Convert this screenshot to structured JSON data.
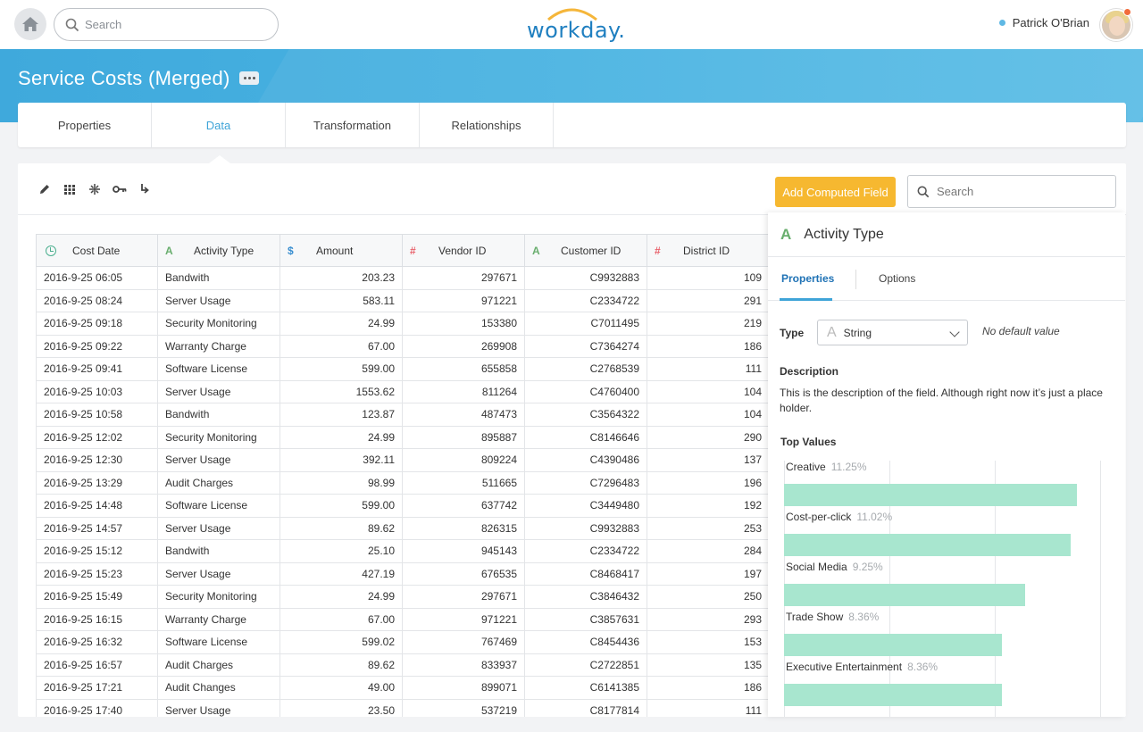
{
  "header": {
    "search_placeholder": "Search",
    "logo_text": "workday.",
    "user_name": "Patrick O'Brian"
  },
  "page": {
    "title": "Service Costs (Merged)"
  },
  "tabs": [
    {
      "label": "Properties",
      "active": false
    },
    {
      "label": "Data",
      "active": true
    },
    {
      "label": "Transformation",
      "active": false
    },
    {
      "label": "Relationships",
      "active": false
    }
  ],
  "toolbar": {
    "add_computed_field": "Add Computed Field",
    "search_placeholder": "Search"
  },
  "table": {
    "columns": [
      {
        "label": "Cost Date",
        "icon": "clock-icon",
        "type_glyph": ""
      },
      {
        "label": "Activity Type",
        "icon": "text-type-icon",
        "type_glyph": "A"
      },
      {
        "label": "Amount",
        "icon": "currency-type-icon",
        "type_glyph": "$"
      },
      {
        "label": "Vendor ID",
        "icon": "number-type-icon",
        "type_glyph": "#"
      },
      {
        "label": "Customer ID",
        "icon": "text-type-icon",
        "type_glyph": "A"
      },
      {
        "label": "District ID",
        "icon": "number-type-icon",
        "type_glyph": "#"
      }
    ],
    "rows": [
      [
        "2016-9-25 06:05",
        "Bandwith",
        "203.23",
        "297671",
        "C9932883",
        "109"
      ],
      [
        "2016-9-25 08:24",
        "Server Usage",
        "583.11",
        "971221",
        "C2334722",
        "291"
      ],
      [
        "2016-9-25 09:18",
        "Security Monitoring",
        "24.99",
        "153380",
        "C7011495",
        "219"
      ],
      [
        "2016-9-25 09:22",
        "Warranty Charge",
        "67.00",
        "269908",
        "C7364274",
        "186"
      ],
      [
        "2016-9-25 09:41",
        "Software License",
        "599.00",
        "655858",
        "C2768539",
        "111"
      ],
      [
        "2016-9-25 10:03",
        "Server Usage",
        "1553.62",
        "811264",
        "C4760400",
        "104"
      ],
      [
        "2016-9-25 10:58",
        "Bandwith",
        "123.87",
        "487473",
        "C3564322",
        "104"
      ],
      [
        "2016-9-25 12:02",
        "Security Monitoring",
        "24.99",
        "895887",
        "C8146646",
        "290"
      ],
      [
        "2016-9-25 12:30",
        "Server Usage",
        "392.11",
        "809224",
        "C4390486",
        "137"
      ],
      [
        "2016-9-25 13:29",
        "Audit Charges",
        "98.99",
        "511665",
        "C7296483",
        "196"
      ],
      [
        "2016-9-25 14:48",
        "Software License",
        "599.00",
        "637742",
        "C3449480",
        "192"
      ],
      [
        "2016-9-25 14:57",
        "Server Usage",
        "89.62",
        "826315",
        "C9932883",
        "253"
      ],
      [
        "2016-9-25 15:12",
        "Bandwith",
        "25.10",
        "945143",
        "C2334722",
        "284"
      ],
      [
        "2016-9-25 15:23",
        "Server Usage",
        "427.19",
        "676535",
        "C8468417",
        "197"
      ],
      [
        "2016-9-25 15:49",
        "Security Monitoring",
        "24.99",
        "297671",
        "C3846432",
        "250"
      ],
      [
        "2016-9-25 16:15",
        "Warranty Charge",
        "67.00",
        "971221",
        "C3857631",
        "293"
      ],
      [
        "2016-9-25 16:32",
        "Software License",
        "599.02",
        "767469",
        "C8454436",
        "153"
      ],
      [
        "2016-9-25 16:57",
        "Audit Charges",
        "89.62",
        "833937",
        "C2722851",
        "135"
      ],
      [
        "2016-9-25 17:21",
        "Audit Changes",
        "49.00",
        "899071",
        "C6141385",
        "186"
      ],
      [
        "2016-9-25 17:40",
        "Server Usage",
        "23.50",
        "537219",
        "C8177814",
        "111"
      ]
    ]
  },
  "panel": {
    "type_glyph": "A",
    "title": "Activity Type",
    "tabs": [
      {
        "label": "Properties",
        "active": true
      },
      {
        "label": "Options",
        "active": false
      }
    ],
    "type_label": "Type",
    "type_value": "String",
    "default_text": "No default value",
    "description_label": "Description",
    "description_text": "This is the description of the field. Although right now it’s just a place holder.",
    "top_values_label": "Top Values",
    "top_values": [
      {
        "name": "Creative",
        "pct_label": "11.25%",
        "pct": 11.25
      },
      {
        "name": "Cost-per-click",
        "pct_label": "11.02%",
        "pct": 11.02
      },
      {
        "name": "Social Media",
        "pct_label": "9.25%",
        "pct": 9.25
      },
      {
        "name": "Trade Show",
        "pct_label": "8.36%",
        "pct": 8.36
      },
      {
        "name": "Executive Entertainment",
        "pct_label": "8.36%",
        "pct": 8.36
      }
    ]
  },
  "colors": {
    "accent": "#3fa4d8",
    "primary_button": "#f6b830",
    "bar_fill": "#a8e6cf",
    "text_type": "#69ae6e",
    "number_type": "#e8616b",
    "currency_type": "#3a8fd0"
  }
}
